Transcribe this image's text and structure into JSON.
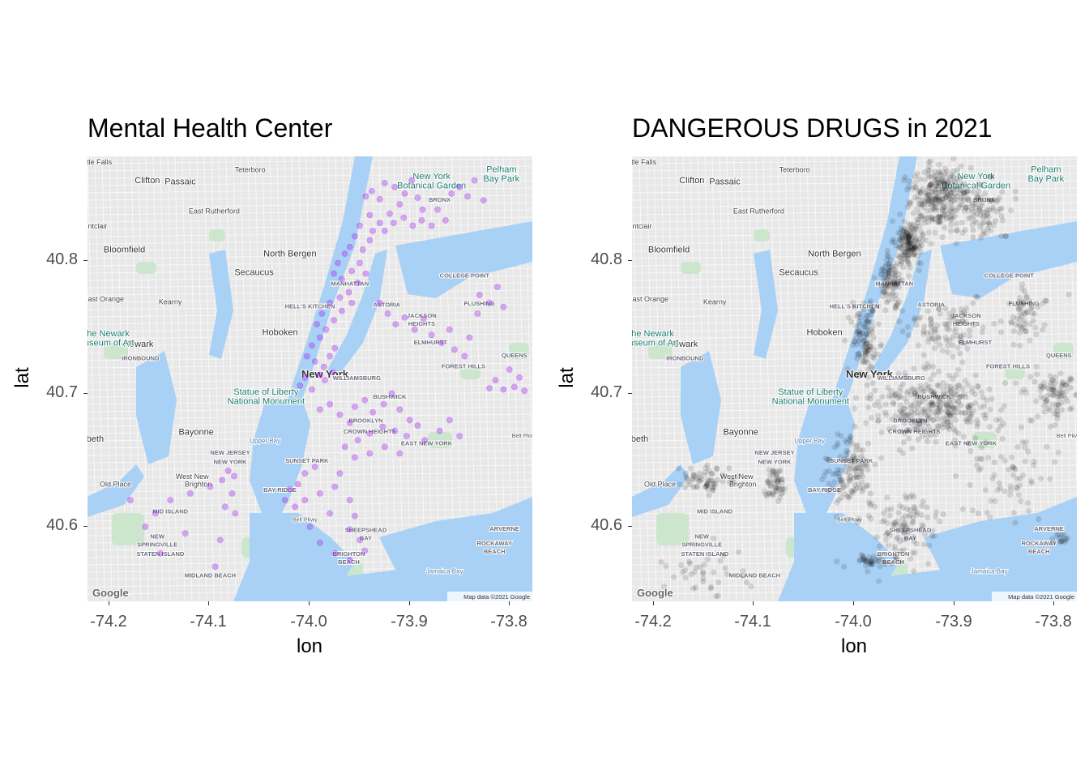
{
  "panels": [
    {
      "title": "Mental Health Center",
      "xlabel": "lon",
      "ylabel": "lat",
      "x_ticks": [
        "-74.2",
        "-74.1",
        "-74.0",
        "-73.9",
        "-73.8"
      ],
      "y_ticks": [
        "40.8",
        "40.7",
        "40.6"
      ],
      "point_color": "#a020f0",
      "google_logo": "Google",
      "attribution": "Map data ©2021 Google"
    },
    {
      "title": "DANGEROUS DRUGS in 2021",
      "xlabel": "lon",
      "ylabel": "lat",
      "x_ticks": [
        "-74.2",
        "-74.1",
        "-74.0",
        "-73.9",
        "-73.8"
      ],
      "y_ticks": [
        "40.8",
        "40.7",
        "40.6"
      ],
      "point_color": "#000000",
      "google_logo": "Google",
      "attribution": "Map data ©2021 Google"
    }
  ],
  "map_labels": [
    {
      "text": "New York",
      "lon": -73.985,
      "lat": 40.712,
      "size": "major"
    },
    {
      "text": "Newark",
      "lon": -74.172,
      "lat": 40.735,
      "size": "city"
    },
    {
      "text": "Hoboken",
      "lon": -74.03,
      "lat": 40.744,
      "size": "city"
    },
    {
      "text": "Clifton",
      "lon": -74.163,
      "lat": 40.858,
      "size": "city"
    },
    {
      "text": "Passaic",
      "lon": -74.13,
      "lat": 40.857,
      "size": "city"
    },
    {
      "text": "Bloomfield",
      "lon": -74.186,
      "lat": 40.806,
      "size": "city"
    },
    {
      "text": "North Bergen",
      "lon": -74.02,
      "lat": 40.803,
      "size": "city"
    },
    {
      "text": "Secaucus",
      "lon": -74.056,
      "lat": 40.789,
      "size": "city"
    },
    {
      "text": "Kearny",
      "lon": -74.14,
      "lat": 40.767,
      "size": "town"
    },
    {
      "text": "Bayonne",
      "lon": -74.114,
      "lat": 40.669,
      "size": "city"
    },
    {
      "text": "Teterboro",
      "lon": -74.06,
      "lat": 40.866,
      "size": "town"
    },
    {
      "text": "East Rutherford",
      "lon": -74.096,
      "lat": 40.835,
      "size": "town"
    },
    {
      "text": "Statue of Liberty",
      "lon": -74.044,
      "lat": 40.699,
      "size": "poi"
    },
    {
      "text": "National Monument",
      "lon": -74.044,
      "lat": 40.692,
      "size": "poi"
    },
    {
      "text": "New York",
      "lon": -73.878,
      "lat": 40.861,
      "size": "poi"
    },
    {
      "text": "Botanical Garden",
      "lon": -73.878,
      "lat": 40.854,
      "size": "poi"
    },
    {
      "text": "Pelham",
      "lon": -73.808,
      "lat": 40.866,
      "size": "poi"
    },
    {
      "text": "Bay Park",
      "lon": -73.808,
      "lat": 40.859,
      "size": "poi"
    },
    {
      "text": "MANHATTAN",
      "lon": -73.96,
      "lat": 40.781,
      "size": "district"
    },
    {
      "text": "BROOKLYN",
      "lon": -73.944,
      "lat": 40.678,
      "size": "district"
    },
    {
      "text": "QUEENS",
      "lon": -73.795,
      "lat": 40.727,
      "size": "district"
    },
    {
      "text": "BRONX",
      "lon": -73.87,
      "lat": 40.844,
      "size": "district"
    },
    {
      "text": "ASTORIA",
      "lon": -73.923,
      "lat": 40.765,
      "size": "district"
    },
    {
      "text": "JACKSON",
      "lon": -73.888,
      "lat": 40.757,
      "size": "district"
    },
    {
      "text": "HEIGHTS",
      "lon": -73.888,
      "lat": 40.751,
      "size": "district"
    },
    {
      "text": "ELMHURST",
      "lon": -73.879,
      "lat": 40.737,
      "size": "district"
    },
    {
      "text": "FLUSHING",
      "lon": -73.83,
      "lat": 40.766,
      "size": "district"
    },
    {
      "text": "COLLEGE POINT",
      "lon": -73.845,
      "lat": 40.787,
      "size": "district"
    },
    {
      "text": "FOREST HILLS",
      "lon": -73.846,
      "lat": 40.719,
      "size": "district"
    },
    {
      "text": "WILLIAMSBURG",
      "lon": -73.953,
      "lat": 40.71,
      "size": "district"
    },
    {
      "text": "BUSHWICK",
      "lon": -73.92,
      "lat": 40.696,
      "size": "district"
    },
    {
      "text": "CROWN HEIGHTS",
      "lon": -73.94,
      "lat": 40.67,
      "size": "district"
    },
    {
      "text": "EAST NEW YORK",
      "lon": -73.883,
      "lat": 40.661,
      "size": "district"
    },
    {
      "text": "SUNSET PARK",
      "lon": -74.003,
      "lat": 40.648,
      "size": "district"
    },
    {
      "text": "BAY RIDGE",
      "lon": -74.03,
      "lat": 40.626,
      "size": "district"
    },
    {
      "text": "SHEEPSHEAD",
      "lon": -73.944,
      "lat": 40.596,
      "size": "district"
    },
    {
      "text": "BAY",
      "lon": -73.944,
      "lat": 40.59,
      "size": "district"
    },
    {
      "text": "BRIGHTON",
      "lon": -73.961,
      "lat": 40.578,
      "size": "district"
    },
    {
      "text": "BEACH",
      "lon": -73.961,
      "lat": 40.572,
      "size": "district"
    },
    {
      "text": "ROCKAWAY",
      "lon": -73.815,
      "lat": 40.586,
      "size": "district"
    },
    {
      "text": "BEACH",
      "lon": -73.815,
      "lat": 40.58,
      "size": "district"
    },
    {
      "text": "ARVERNE",
      "lon": -73.805,
      "lat": 40.597,
      "size": "district"
    },
    {
      "text": "HELL'S KITCHEN",
      "lon": -74.0,
      "lat": 40.764,
      "size": "district"
    },
    {
      "text": "IRONBOUND",
      "lon": -74.17,
      "lat": 40.725,
      "size": "district"
    },
    {
      "text": "NEW JERSEY",
      "lon": -74.08,
      "lat": 40.654,
      "size": "district"
    },
    {
      "text": "NEW YORK",
      "lon": -74.08,
      "lat": 40.647,
      "size": "district"
    },
    {
      "text": "West New",
      "lon": -74.118,
      "lat": 40.636,
      "size": "town"
    },
    {
      "text": "Brighton",
      "lon": -74.112,
      "lat": 40.63,
      "size": "town"
    },
    {
      "text": "Old Place",
      "lon": -74.195,
      "lat": 40.63,
      "size": "town"
    },
    {
      "text": "MID ISLAND",
      "lon": -74.14,
      "lat": 40.61,
      "size": "district"
    },
    {
      "text": "NEW",
      "lon": -74.153,
      "lat": 40.591,
      "size": "district"
    },
    {
      "text": "SPRINGVILLE",
      "lon": -74.153,
      "lat": 40.585,
      "size": "district"
    },
    {
      "text": "STATEN ISLAND",
      "lon": -74.15,
      "lat": 40.578,
      "size": "district"
    },
    {
      "text": "MIDLAND BEACH",
      "lon": -74.1,
      "lat": 40.562,
      "size": "district"
    },
    {
      "text": "Jamaica Bay",
      "lon": -73.865,
      "lat": 40.565,
      "size": "water"
    },
    {
      "text": "Upper Bay",
      "lon": -74.045,
      "lat": 40.663,
      "size": "water"
    },
    {
      "text": "Elizabeth",
      "lon": -74.225,
      "lat": 40.664,
      "size": "city"
    },
    {
      "text": "Montclair",
      "lon": -74.218,
      "lat": 40.824,
      "size": "town"
    },
    {
      "text": "East Orange",
      "lon": -74.207,
      "lat": 40.769,
      "size": "town"
    },
    {
      "text": "Little Falls",
      "lon": -74.215,
      "lat": 40.872,
      "size": "town"
    },
    {
      "text": "The Newark",
      "lon": -74.205,
      "lat": 40.743,
      "size": "poi"
    },
    {
      "text": "Museum of Art",
      "lon": -74.205,
      "lat": 40.736,
      "size": "poi"
    },
    {
      "text": "Belt Pkwy",
      "lon": -74.005,
      "lat": 40.604,
      "size": "road"
    },
    {
      "text": "Belt Pkwy",
      "lon": -73.785,
      "lat": 40.667,
      "size": "road"
    }
  ],
  "chart_data": [
    {
      "type": "scatter",
      "title": "Mental Health Center",
      "xlabel": "lon",
      "ylabel": "lat",
      "xlim": [
        -74.223,
        -73.777
      ],
      "ylim": [
        40.544,
        40.878
      ],
      "x_ticks": [
        -74.2,
        -74.1,
        -74.0,
        -73.9,
        -73.8
      ],
      "y_ticks": [
        40.8,
        40.7,
        40.6
      ],
      "point_color": "#a020f0",
      "point_alpha": 0.35,
      "background": "Google map tiles",
      "points": [
        [
          -73.944,
          40.848
        ],
        [
          -73.938,
          40.852
        ],
        [
          -73.93,
          40.846
        ],
        [
          -73.925,
          40.858
        ],
        [
          -73.915,
          40.855
        ],
        [
          -73.91,
          40.842
        ],
        [
          -73.905,
          40.85
        ],
        [
          -73.898,
          40.86
        ],
        [
          -73.892,
          40.847
        ],
        [
          -73.887,
          40.838
        ],
        [
          -73.92,
          40.835
        ],
        [
          -73.93,
          40.828
        ],
        [
          -73.94,
          40.834
        ],
        [
          -73.95,
          40.826
        ],
        [
          -73.955,
          40.818
        ],
        [
          -73.96,
          40.81
        ],
        [
          -73.947,
          40.808
        ],
        [
          -73.94,
          40.815
        ],
        [
          -73.937,
          40.822
        ],
        [
          -73.925,
          40.822
        ],
        [
          -73.916,
          40.828
        ],
        [
          -73.906,
          40.832
        ],
        [
          -73.897,
          40.826
        ],
        [
          -73.888,
          40.83
        ],
        [
          -73.878,
          40.826
        ],
        [
          -73.872,
          40.838
        ],
        [
          -73.864,
          40.83
        ],
        [
          -73.858,
          40.85
        ],
        [
          -73.85,
          40.855
        ],
        [
          -73.842,
          40.848
        ],
        [
          -73.835,
          40.86
        ],
        [
          -73.826,
          40.845
        ],
        [
          -73.965,
          40.805
        ],
        [
          -73.972,
          40.798
        ],
        [
          -73.976,
          40.79
        ],
        [
          -73.968,
          40.786
        ],
        [
          -73.958,
          40.792
        ],
        [
          -73.95,
          40.798
        ],
        [
          -73.944,
          40.79
        ],
        [
          -73.952,
          40.783
        ],
        [
          -73.961,
          40.776
        ],
        [
          -73.97,
          40.772
        ],
        [
          -73.98,
          40.768
        ],
        [
          -73.988,
          40.76
        ],
        [
          -73.993,
          40.752
        ],
        [
          -73.984,
          40.748
        ],
        [
          -73.976,
          40.755
        ],
        [
          -73.968,
          40.762
        ],
        [
          -73.958,
          40.768
        ],
        [
          -73.99,
          40.742
        ],
        [
          -73.998,
          40.736
        ],
        [
          -74.003,
          40.728
        ],
        [
          -73.995,
          40.724
        ],
        [
          -73.986,
          40.72
        ],
        [
          -73.98,
          40.728
        ],
        [
          -73.975,
          40.734
        ],
        [
          -73.99,
          40.714
        ],
        [
          -74.005,
          40.712
        ],
        [
          -74.01,
          40.706
        ],
        [
          -73.998,
          40.703
        ],
        [
          -73.985,
          40.71
        ],
        [
          -73.977,
          40.716
        ],
        [
          -73.93,
          40.768
        ],
        [
          -73.922,
          40.76
        ],
        [
          -73.914,
          40.752
        ],
        [
          -73.905,
          40.757
        ],
        [
          -73.895,
          40.748
        ],
        [
          -73.886,
          40.756
        ],
        [
          -73.878,
          40.744
        ],
        [
          -73.868,
          40.738
        ],
        [
          -73.86,
          40.748
        ],
        [
          -73.855,
          40.733
        ],
        [
          -73.845,
          40.728
        ],
        [
          -73.832,
          40.76
        ],
        [
          -73.83,
          40.774
        ],
        [
          -73.82,
          40.768
        ],
        [
          -73.812,
          40.78
        ],
        [
          -73.806,
          40.765
        ],
        [
          -73.84,
          40.742
        ],
        [
          -73.82,
          40.704
        ],
        [
          -73.814,
          40.71
        ],
        [
          -73.806,
          40.703
        ],
        [
          -73.795,
          40.705
        ],
        [
          -73.785,
          40.702
        ],
        [
          -73.79,
          40.712
        ],
        [
          -73.8,
          40.718
        ],
        [
          -73.955,
          40.69
        ],
        [
          -73.945,
          40.695
        ],
        [
          -73.937,
          40.686
        ],
        [
          -73.926,
          40.692
        ],
        [
          -73.918,
          40.7
        ],
        [
          -73.91,
          40.688
        ],
        [
          -73.9,
          40.68
        ],
        [
          -73.892,
          40.676
        ],
        [
          -73.903,
          40.668
        ],
        [
          -73.915,
          40.672
        ],
        [
          -73.927,
          40.675
        ],
        [
          -73.94,
          40.67
        ],
        [
          -73.952,
          40.665
        ],
        [
          -73.96,
          40.678
        ],
        [
          -73.97,
          40.684
        ],
        [
          -73.98,
          40.692
        ],
        [
          -73.99,
          40.688
        ],
        [
          -73.965,
          40.66
        ],
        [
          -73.955,
          40.652
        ],
        [
          -73.94,
          40.655
        ],
        [
          -73.925,
          40.66
        ],
        [
          -73.91,
          40.655
        ],
        [
          -73.885,
          40.665
        ],
        [
          -73.87,
          40.672
        ],
        [
          -73.86,
          40.68
        ],
        [
          -73.85,
          40.668
        ],
        [
          -73.995,
          40.645
        ],
        [
          -74.005,
          40.64
        ],
        [
          -74.012,
          40.632
        ],
        [
          -74.02,
          40.628
        ],
        [
          -74.025,
          40.62
        ],
        [
          -74.015,
          40.615
        ],
        [
          -74.005,
          40.62
        ],
        [
          -73.99,
          40.625
        ],
        [
          -73.975,
          40.63
        ],
        [
          -73.96,
          40.62
        ],
        [
          -73.955,
          40.608
        ],
        [
          -73.96,
          40.598
        ],
        [
          -73.95,
          40.59
        ],
        [
          -73.945,
          40.582
        ],
        [
          -73.96,
          40.575
        ],
        [
          -73.975,
          40.58
        ],
        [
          -73.99,
          40.588
        ],
        [
          -74.0,
          40.6
        ],
        [
          -73.98,
          40.61
        ],
        [
          -73.97,
          40.64
        ],
        [
          -74.082,
          40.642
        ],
        [
          -74.076,
          40.638
        ],
        [
          -74.088,
          40.635
        ],
        [
          -74.078,
          40.625
        ],
        [
          -74.085,
          40.615
        ],
        [
          -74.075,
          40.61
        ],
        [
          -74.1,
          40.63
        ],
        [
          -74.12,
          40.625
        ],
        [
          -74.14,
          40.62
        ],
        [
          -74.155,
          40.61
        ],
        [
          -74.165,
          40.6
        ],
        [
          -74.15,
          40.58
        ],
        [
          -74.125,
          40.595
        ],
        [
          -74.09,
          40.59
        ],
        [
          -74.095,
          40.57
        ],
        [
          -74.18,
          40.62
        ]
      ]
    },
    {
      "type": "scatter",
      "title": "DANGEROUS DRUGS in 2021",
      "xlabel": "lon",
      "ylabel": "lat",
      "xlim": [
        -74.223,
        -73.777
      ],
      "ylim": [
        40.544,
        40.878
      ],
      "x_ticks": [
        -74.2,
        -74.1,
        -74.0,
        -73.9,
        -73.8
      ],
      "y_ticks": [
        40.8,
        40.7,
        40.6
      ],
      "point_color": "#000000",
      "point_alpha": 0.12,
      "background": "Google map tiles",
      "clusters": [
        {
          "lon": -73.915,
          "lat": 40.848,
          "count": 260,
          "spread": [
            0.025,
            0.022
          ]
        },
        {
          "lon": -73.87,
          "lat": 40.835,
          "count": 90,
          "spread": [
            0.025,
            0.02
          ]
        },
        {
          "lon": -73.945,
          "lat": 40.812,
          "count": 150,
          "spread": [
            0.012,
            0.016
          ]
        },
        {
          "lon": -73.965,
          "lat": 40.785,
          "count": 90,
          "spread": [
            0.01,
            0.015
          ]
        },
        {
          "lon": -73.99,
          "lat": 40.742,
          "count": 110,
          "spread": [
            0.012,
            0.022
          ]
        },
        {
          "lon": -73.91,
          "lat": 40.75,
          "count": 90,
          "spread": [
            0.035,
            0.016
          ]
        },
        {
          "lon": -73.83,
          "lat": 40.76,
          "count": 60,
          "spread": [
            0.02,
            0.02
          ]
        },
        {
          "lon": -73.92,
          "lat": 40.69,
          "count": 320,
          "spread": [
            0.05,
            0.022
          ]
        },
        {
          "lon": -73.8,
          "lat": 40.7,
          "count": 90,
          "spread": [
            0.022,
            0.014
          ]
        },
        {
          "lon": -74.005,
          "lat": 40.64,
          "count": 120,
          "spread": [
            0.02,
            0.025
          ]
        },
        {
          "lon": -73.95,
          "lat": 40.6,
          "count": 100,
          "spread": [
            0.03,
            0.02
          ]
        },
        {
          "lon": -73.98,
          "lat": 40.575,
          "count": 40,
          "spread": [
            0.02,
            0.005
          ]
        },
        {
          "lon": -74.08,
          "lat": 40.632,
          "count": 50,
          "spread": [
            0.008,
            0.012
          ]
        },
        {
          "lon": -74.15,
          "lat": 40.635,
          "count": 60,
          "spread": [
            0.025,
            0.008
          ]
        },
        {
          "lon": -74.15,
          "lat": 40.565,
          "count": 40,
          "spread": [
            0.035,
            0.015
          ]
        },
        {
          "lon": -73.85,
          "lat": 40.64,
          "count": 70,
          "spread": [
            0.04,
            0.03
          ]
        },
        {
          "lon": -73.79,
          "lat": 40.59,
          "count": 15,
          "spread": [
            0.01,
            0.006
          ]
        }
      ]
    }
  ]
}
